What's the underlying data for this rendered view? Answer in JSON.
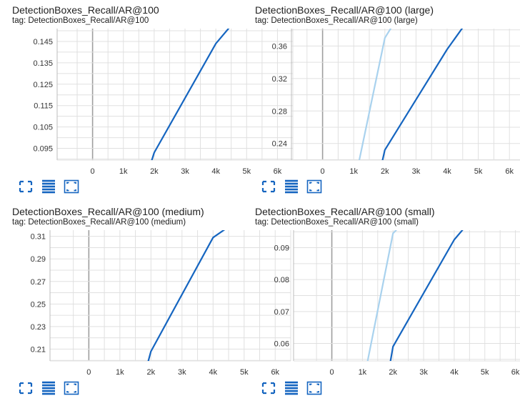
{
  "colors": {
    "accent": "#1565c0",
    "series_dark": "#1565c0",
    "series_light": "#a9d2ee",
    "grid": "#e0e0e0"
  },
  "icons": [
    "expand-icon",
    "data-selection-icon",
    "fit-domain-icon"
  ],
  "cards": [
    {
      "title": "DetectionBoxes_Recall/AR@100",
      "tag": "tag: DetectionBoxes_Recall/AR@100"
    },
    {
      "title": "DetectionBoxes_Recall/AR@100 (large)",
      "tag": "tag: DetectionBoxes_Recall/AR@100 (large)"
    },
    {
      "title": "DetectionBoxes_Recall/AR@100 (medium)",
      "tag": "tag: DetectionBoxes_Recall/AR@100 (medium)"
    },
    {
      "title": "DetectionBoxes_Recall/AR@100 (small)",
      "tag": "tag: DetectionBoxes_Recall/AR@100 (small)"
    }
  ],
  "chart_data": [
    {
      "type": "line",
      "title": "DetectionBoxes_Recall/AR@100",
      "xlim": [
        -1150,
        6500
      ],
      "ylim": [
        0.0895,
        0.151
      ],
      "xticks": [
        0,
        1000,
        2000,
        3000,
        4000,
        5000,
        6000
      ],
      "xtick_labels": [
        "0",
        "1k",
        "2k",
        "3k",
        "4k",
        "5k",
        "6k"
      ],
      "yticks": [
        0.095,
        0.105,
        0.115,
        0.125,
        0.135,
        0.145
      ],
      "ytick_labels": [
        "0.095",
        "0.105",
        "0.115",
        "0.125",
        "0.135",
        "0.145"
      ],
      "grid": true,
      "series": [
        {
          "color": "#1565c0",
          "x": [
            1900,
            2000,
            4000,
            4500
          ],
          "y": [
            0.0885,
            0.093,
            0.144,
            0.1525
          ]
        }
      ]
    },
    {
      "type": "line",
      "title": "DetectionBoxes_Recall/AR@100 (large)",
      "xlim": [
        -1000,
        6500
      ],
      "ylim": [
        0.2195,
        0.3815
      ],
      "xticks": [
        0,
        1000,
        2000,
        3000,
        4000,
        5000,
        6000
      ],
      "xtick_labels": [
        "0",
        "1k",
        "2k",
        "3k",
        "4k",
        "5k",
        "6k"
      ],
      "yticks": [
        0.24,
        0.28,
        0.32,
        0.36
      ],
      "ytick_labels": [
        "0.24",
        "0.28",
        "0.32",
        "0.36"
      ],
      "grid": true,
      "series": [
        {
          "color": "#a9d2ee",
          "x": [
            1150,
            2000,
            2250
          ],
          "y": [
            0.214,
            0.37,
            0.3855
          ]
        },
        {
          "color": "#1565c0",
          "x": [
            1900,
            2000,
            4000,
            4550
          ],
          "y": [
            0.215,
            0.232,
            0.356,
            0.3855
          ]
        }
      ]
    },
    {
      "type": "line",
      "title": "DetectionBoxes_Recall/AR@100 (medium)",
      "xlim": [
        -1250,
        6500
      ],
      "ylim": [
        0.1995,
        0.3155
      ],
      "xticks": [
        0,
        1000,
        2000,
        3000,
        4000,
        5000,
        6000
      ],
      "xtick_labels": [
        "0",
        "1k",
        "2k",
        "3k",
        "4k",
        "5k",
        "6k"
      ],
      "yticks": [
        0.21,
        0.23,
        0.25,
        0.27,
        0.29,
        0.31
      ],
      "ytick_labels": [
        "0.21",
        "0.23",
        "0.25",
        "0.27",
        "0.29",
        "0.31"
      ],
      "grid": true,
      "series": [
        {
          "color": "#1565c0",
          "x": [
            1900,
            2000,
            4000,
            4450
          ],
          "y": [
            0.198,
            0.208,
            0.309,
            0.3175
          ]
        }
      ]
    },
    {
      "type": "line",
      "title": "DetectionBoxes_Recall/AR@100 (small)",
      "xlim": [
        -1250,
        6500
      ],
      "ylim": [
        0.0545,
        0.0955
      ],
      "xticks": [
        0,
        1000,
        2000,
        3000,
        4000,
        5000,
        6000
      ],
      "xtick_labels": [
        "0",
        "1k",
        "2k",
        "3k",
        "4k",
        "5k",
        "6k"
      ],
      "yticks": [
        0.06,
        0.07,
        0.08,
        0.09
      ],
      "ytick_labels": [
        "0.06",
        "0.07",
        "0.08",
        "0.09"
      ],
      "grid": true,
      "series": [
        {
          "color": "#a9d2ee",
          "x": [
            1150,
            2000,
            2250
          ],
          "y": [
            0.0535,
            0.0945,
            0.097
          ]
        },
        {
          "color": "#1565c0",
          "x": [
            1900,
            2000,
            4000,
            4400
          ],
          "y": [
            0.0535,
            0.059,
            0.0925,
            0.097
          ]
        }
      ]
    }
  ]
}
